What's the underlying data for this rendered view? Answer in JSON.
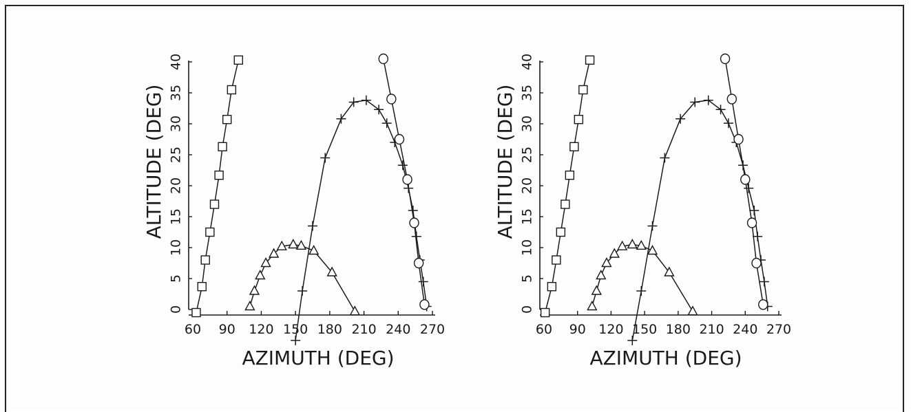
{
  "chart_data": [
    {
      "type": "line",
      "xlabel": "AZIMUTH (DEG)",
      "ylabel": "ALTITUDE (DEG)",
      "xlim": [
        60,
        270
      ],
      "ylim": [
        0,
        40
      ],
      "xticks": [
        "60",
        "90",
        "120",
        "150",
        "180",
        "210",
        "240",
        "270"
      ],
      "yticks": [
        "0",
        "5",
        "10",
        "15",
        "20",
        "25",
        "30",
        "35",
        "40"
      ],
      "series": [
        {
          "marker": "square",
          "x": [
            63,
            68,
            71,
            75,
            79,
            83,
            86,
            90,
            94,
            100
          ],
          "y": [
            -0.5,
            3.7,
            8,
            12.5,
            17,
            21.7,
            26.3,
            30.7,
            35.5,
            40.3
          ]
        },
        {
          "marker": "triangle",
          "x": [
            110,
            114,
            119,
            124,
            131,
            138,
            148,
            155,
            166,
            182,
            202
          ],
          "y": [
            0.5,
            3,
            5.5,
            7.5,
            9,
            10.2,
            10.5,
            10.3,
            9.5,
            6,
            -0.3
          ]
        },
        {
          "marker": "plus",
          "x": [
            150,
            156,
            165,
            176,
            190,
            201,
            212,
            223,
            230,
            237,
            244,
            249,
            253,
            256,
            259,
            262,
            265
          ],
          "y": [
            -5,
            3,
            13.5,
            24.5,
            30.8,
            33.5,
            33.8,
            32.3,
            30.1,
            27,
            23.3,
            19.6,
            16,
            11.8,
            8,
            4.5,
            0.5
          ]
        },
        {
          "marker": "circle",
          "x": [
            227,
            234,
            241,
            248,
            254,
            258,
            263
          ],
          "y": [
            40.5,
            34,
            27.5,
            21,
            14,
            7.5,
            0.8
          ]
        }
      ]
    },
    {
      "type": "line",
      "xlabel": "AZIMUTH (DEG)",
      "ylabel": "ALTITUDE (DEG)",
      "xlim": [
        60,
        270
      ],
      "ylim": [
        0,
        40
      ],
      "xticks": [
        "60",
        "90",
        "120",
        "150",
        "180",
        "210",
        "240",
        "270"
      ],
      "yticks": [
        "0",
        "5",
        "10",
        "15",
        "20",
        "25",
        "30",
        "35",
        "40"
      ],
      "series": [
        {
          "marker": "square",
          "x": [
            61,
            67,
            71,
            75,
            79,
            83,
            87,
            91,
            95,
            101
          ],
          "y": [
            -0.5,
            3.7,
            8,
            12.5,
            17,
            21.7,
            26.3,
            30.7,
            35.5,
            40.3
          ]
        },
        {
          "marker": "triangle",
          "x": [
            103,
            107,
            111,
            116,
            123,
            130,
            139,
            147,
            157,
            172,
            193
          ],
          "y": [
            0.5,
            3,
            5.5,
            7.5,
            9,
            10.2,
            10.5,
            10.3,
            9.5,
            6,
            -0.3
          ]
        },
        {
          "marker": "plus",
          "x": [
            139,
            147,
            157,
            168,
            182,
            195,
            207,
            218,
            225,
            232,
            238,
            243,
            248,
            251,
            254,
            257,
            260
          ],
          "y": [
            -5,
            3,
            13.5,
            24.5,
            30.8,
            33.5,
            33.8,
            32.3,
            30.1,
            27,
            23.3,
            19.6,
            16,
            11.8,
            8,
            4.5,
            0.5
          ]
        },
        {
          "marker": "circle",
          "x": [
            222,
            228,
            234,
            240,
            246,
            250,
            256
          ],
          "y": [
            40.5,
            34,
            27.5,
            21,
            14,
            7.5,
            0.8
          ]
        }
      ]
    }
  ]
}
